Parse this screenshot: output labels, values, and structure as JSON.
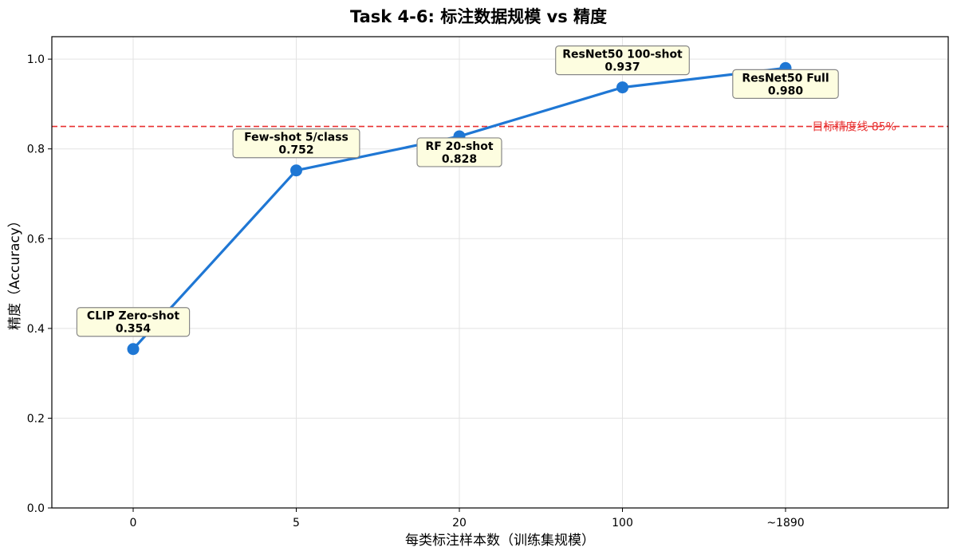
{
  "chart_data": {
    "type": "line",
    "title": "Task 4-6: 标注数据规模 vs 精度",
    "xlabel": "每类标注样本数（训练集规模）",
    "ylabel": "精度（Accuracy）",
    "categories": [
      "0",
      "5",
      "20",
      "100",
      "~1890"
    ],
    "ylim": [
      0.0,
      1.05
    ],
    "yticks": [
      "0.0",
      "0.2",
      "0.4",
      "0.6",
      "0.8",
      "1.0"
    ],
    "ytick_values": [
      0.0,
      0.2,
      0.4,
      0.6,
      0.8,
      1.0
    ],
    "grid": true,
    "series": [
      {
        "values": [
          0.354,
          0.752,
          0.828,
          0.937,
          0.98
        ],
        "color": "#1f77d4"
      }
    ],
    "annotations": [
      {
        "name": "CLIP Zero-shot",
        "value": "0.354",
        "placement": "above"
      },
      {
        "name": "Few-shot 5/class",
        "value": "0.752",
        "placement": "above"
      },
      {
        "name": "RF 20-shot",
        "value": "0.828",
        "placement": "below"
      },
      {
        "name": "ResNet50 100-shot",
        "value": "0.937",
        "placement": "above"
      },
      {
        "name": "ResNet50 Full",
        "value": "0.980",
        "placement": "below"
      }
    ],
    "reference_line": {
      "value": 0.85,
      "label": "目标精度线 85%",
      "color": "#e83030",
      "style": "dashed"
    }
  }
}
